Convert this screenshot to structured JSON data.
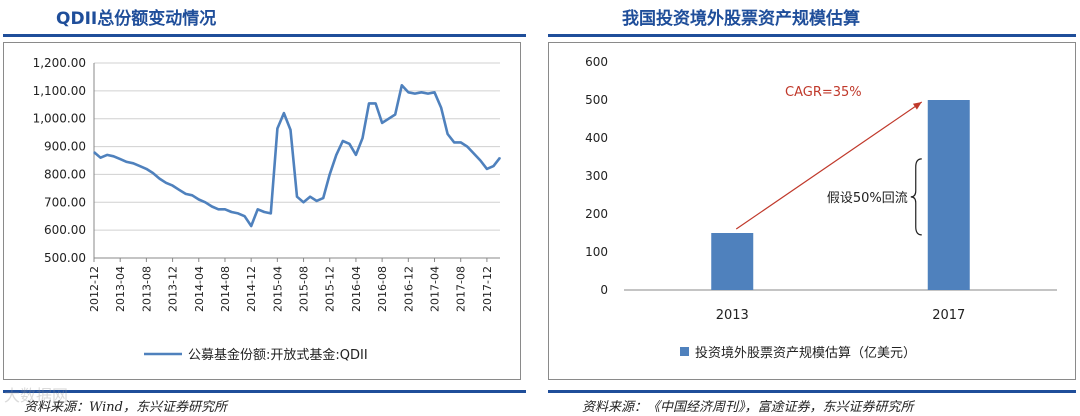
{
  "watermark": "大数据网",
  "left": {
    "title": "QDII总份额变动情况",
    "source": "资料来源：Wind，东兴证券研究所",
    "chart_data": {
      "type": "line",
      "title": "QDII总份额变动情况",
      "ylim": [
        500,
        1200
      ],
      "yticks": [
        "1,200.00",
        "1,100.00",
        "1,000.00",
        "900.00",
        "800.00",
        "700.00",
        "600.00",
        "500.00"
      ],
      "ytick_values": [
        1200,
        1100,
        1000,
        900,
        800,
        700,
        600,
        500
      ],
      "xtick_labels": [
        "2012-12",
        "2013-04",
        "2013-08",
        "2013-12",
        "2014-04",
        "2014-08",
        "2014-12",
        "2015-04",
        "2015-08",
        "2015-12",
        "2016-04",
        "2016-08",
        "2016-12",
        "2017-04",
        "2017-08",
        "2017-12"
      ],
      "grid": true,
      "legend_position": "bottom",
      "series": [
        {
          "name": "公募基金份额:开放式基金:QDII",
          "color": "#4f81bd",
          "x": [
            "2012-12",
            "2013-01",
            "2013-02",
            "2013-03",
            "2013-04",
            "2013-05",
            "2013-06",
            "2013-07",
            "2013-08",
            "2013-09",
            "2013-10",
            "2013-11",
            "2013-12",
            "2014-01",
            "2014-02",
            "2014-03",
            "2014-04",
            "2014-05",
            "2014-06",
            "2014-07",
            "2014-08",
            "2014-09",
            "2014-10",
            "2014-11",
            "2014-12",
            "2015-01",
            "2015-02",
            "2015-03",
            "2015-04",
            "2015-05",
            "2015-06",
            "2015-07",
            "2015-08",
            "2015-09",
            "2015-10",
            "2015-11",
            "2015-12",
            "2016-01",
            "2016-02",
            "2016-03",
            "2016-04",
            "2016-05",
            "2016-06",
            "2016-07",
            "2016-08",
            "2016-09",
            "2016-10",
            "2016-11",
            "2016-12",
            "2017-01",
            "2017-02",
            "2017-03",
            "2017-04",
            "2017-05",
            "2017-06",
            "2017-07",
            "2017-08",
            "2017-09",
            "2017-10",
            "2017-11",
            "2017-12",
            "2018-01",
            "2018-02"
          ],
          "values": [
            880,
            860,
            870,
            865,
            855,
            845,
            840,
            830,
            820,
            805,
            785,
            770,
            760,
            745,
            730,
            725,
            710,
            700,
            685,
            675,
            675,
            665,
            660,
            650,
            615,
            675,
            665,
            660,
            965,
            1020,
            960,
            720,
            700,
            720,
            705,
            715,
            800,
            870,
            920,
            910,
            870,
            930,
            1055,
            1055,
            985,
            1000,
            1015,
            1120,
            1095,
            1090,
            1095,
            1090,
            1095,
            1040,
            945,
            915,
            915,
            900,
            875,
            850,
            820,
            830,
            860
          ]
        }
      ]
    }
  },
  "right": {
    "title": "我国投资境外股票资产规模估算",
    "source": "资料来源：《中国经济周刊》，富途证券，东兴证券研究所",
    "chart_data": {
      "type": "bar",
      "title": "我国投资境外股票资产规模估算",
      "categories": [
        "2013",
        "2017"
      ],
      "ylim": [
        0,
        600
      ],
      "yticks": [
        "600",
        "500",
        "400",
        "300",
        "200",
        "100",
        "0"
      ],
      "ytick_values": [
        600,
        500,
        400,
        300,
        200,
        100,
        0
      ],
      "grid": false,
      "legend_position": "bottom",
      "series": [
        {
          "name": "投资境外股票资产规模估算（亿美元）",
          "color": "#4f81bd",
          "values": [
            150,
            500
          ]
        }
      ],
      "annotations": {
        "cagr": "CAGR=35%",
        "assumption": "假设50%回流"
      }
    }
  }
}
